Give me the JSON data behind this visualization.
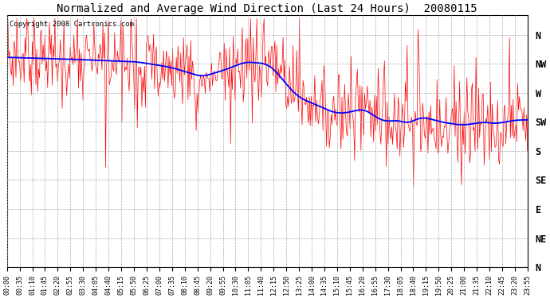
{
  "title": "Normalized and Average Wind Direction (Last 24 Hours)  20080115",
  "copyright": "Copyright 2008 Cartronics.com",
  "background_color": "#ffffff",
  "plot_bg_color": "#ffffff",
  "grid_color": "#aaaaaa",
  "red_color": "#ff0000",
  "blue_color": "#0000ff",
  "ytick_labels": [
    "N",
    "NW",
    "W",
    "SW",
    "S",
    "SE",
    "E",
    "NE",
    "N"
  ],
  "ytick_values": [
    360,
    315,
    270,
    225,
    180,
    135,
    90,
    45,
    0
  ],
  "ylim": [
    0,
    390
  ],
  "xlabel_rotation": 90,
  "xtick_labels": [
    "00:00",
    "00:35",
    "01:10",
    "01:45",
    "02:20",
    "02:55",
    "03:30",
    "04:05",
    "04:40",
    "05:15",
    "05:50",
    "06:25",
    "07:00",
    "07:35",
    "08:10",
    "08:45",
    "09:20",
    "09:55",
    "10:30",
    "11:05",
    "11:40",
    "12:15",
    "12:50",
    "13:25",
    "14:00",
    "14:35",
    "15:10",
    "15:45",
    "16:20",
    "16:55",
    "17:30",
    "18:05",
    "18:40",
    "19:15",
    "19:50",
    "20:25",
    "21:00",
    "21:35",
    "22:10",
    "22:45",
    "23:20",
    "23:55"
  ],
  "blue_trend_x": [
    0,
    3,
    6,
    7.5,
    9,
    10,
    11,
    12,
    12.5,
    13,
    13.5,
    14,
    14.5,
    15,
    15.5,
    16,
    16.5,
    17,
    17.5,
    18,
    18.5,
    19,
    19.5,
    20,
    20.5,
    21,
    21.5,
    22,
    22.5,
    23,
    23.5,
    24
  ],
  "blue_trend_y": [
    325,
    322,
    318,
    310,
    295,
    305,
    318,
    315,
    300,
    278,
    262,
    255,
    248,
    240,
    238,
    242,
    245,
    232,
    225,
    228,
    222,
    232,
    230,
    225,
    222,
    220,
    222,
    225,
    222,
    225,
    228,
    228
  ]
}
